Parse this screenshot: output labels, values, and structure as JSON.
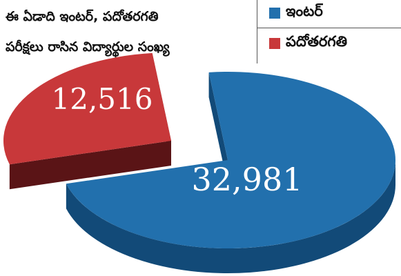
{
  "chart_data": {
    "type": "pie",
    "title_lines": [
      "ఈ ఏడాది ఇంటర్‌, పదోతరగతి",
      "పరీక్షలు రాసిన విద్యార్థుల సంఖ్య"
    ],
    "legend_position": "top-right",
    "slices": [
      {
        "name": "ఇంటర్‌",
        "value": 32981,
        "label": "32,981",
        "color": "#2270ad",
        "side_color": "#124a78",
        "exploded": false
      },
      {
        "name": "పదోతరగతి",
        "value": 12516,
        "label": "12,516",
        "color": "#c8383a",
        "side_color": "#6e1a1c",
        "exploded": true
      }
    ]
  }
}
